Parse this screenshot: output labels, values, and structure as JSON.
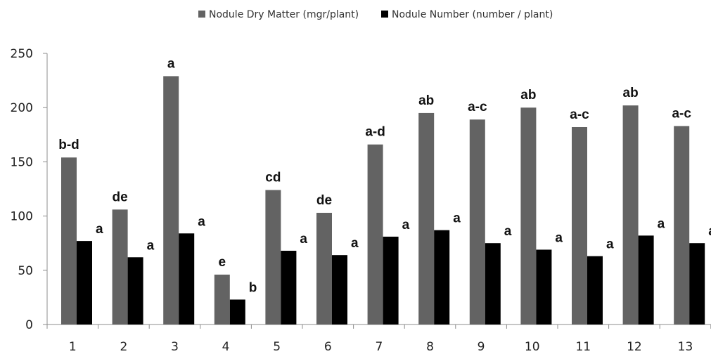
{
  "chart_data": {
    "type": "bar",
    "categories": [
      "1",
      "2",
      "3",
      "4",
      "5",
      "6",
      "7",
      "8",
      "9",
      "10",
      "11",
      "12",
      "13"
    ],
    "series": [
      {
        "name": "Nodule Dry Matter (mgr/plant)",
        "color": "#636363",
        "values": [
          154,
          106,
          229,
          46,
          124,
          103,
          166,
          195,
          189,
          200,
          182,
          202,
          183
        ],
        "labels": [
          "b-d",
          "de",
          "a",
          "e",
          "cd",
          "de",
          "a-d",
          "ab",
          "a-c",
          "ab",
          "a-c",
          "ab",
          "a-c"
        ]
      },
      {
        "name": "Nodule Number (number / plant)",
        "color": "#000000",
        "values": [
          77,
          62,
          84,
          23,
          68,
          64,
          81,
          87,
          75,
          69,
          63,
          82,
          75
        ],
        "labels": [
          "a",
          "a",
          "a",
          "b",
          "a",
          "a",
          "a",
          "a",
          "a",
          "a",
          "a",
          "a",
          "a"
        ]
      }
    ],
    "title": "",
    "xlabel": "",
    "ylabel": "",
    "ylim": [
      0,
      250
    ],
    "yticks": [
      "0",
      "50",
      "100",
      "150",
      "200",
      "250"
    ],
    "grid": false,
    "legend_position": "top-center"
  }
}
